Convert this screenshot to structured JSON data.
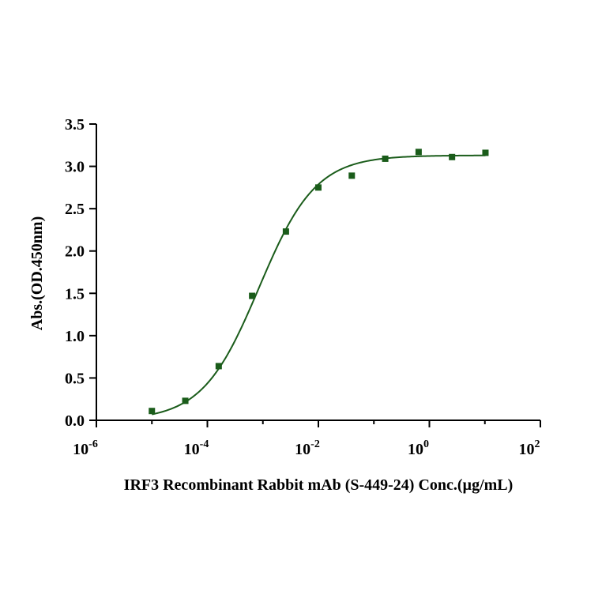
{
  "chart_data": {
    "type": "scatter",
    "title": "",
    "xlabel": "IRF3 Recombinant Rabbit mAb (S-449-24) Conc.(µg/mL)",
    "ylabel": "Abs.(OD.450nm)",
    "x_scale": "log",
    "xlim": [
      1e-06,
      100
    ],
    "ylim": [
      0,
      3.5
    ],
    "x_ticks": [
      {
        "base": "10",
        "exp": "-6",
        "value": 1e-06
      },
      {
        "base": "10",
        "exp": "-4",
        "value": 0.0001
      },
      {
        "base": "10",
        "exp": "-2",
        "value": 0.01
      },
      {
        "base": "10",
        "exp": "0",
        "value": 1
      },
      {
        "base": "10",
        "exp": "2",
        "value": 100
      }
    ],
    "y_ticks": [
      "0.0",
      "0.5",
      "1.0",
      "1.5",
      "2.0",
      "2.5",
      "3.0",
      "3.5"
    ],
    "grid": false,
    "colors": {
      "series": "#1a5c1a"
    },
    "series": [
      {
        "x": [
          1e-05,
          4e-05,
          0.00016,
          0.00064,
          0.0026,
          0.01,
          0.04,
          0.16,
          0.64,
          2.56,
          10.24
        ],
        "y": [
          0.11,
          0.23,
          0.64,
          1.47,
          2.23,
          2.75,
          2.89,
          3.09,
          3.17,
          3.11,
          3.16
        ],
        "fit": "four-parameter logistic"
      }
    ]
  }
}
